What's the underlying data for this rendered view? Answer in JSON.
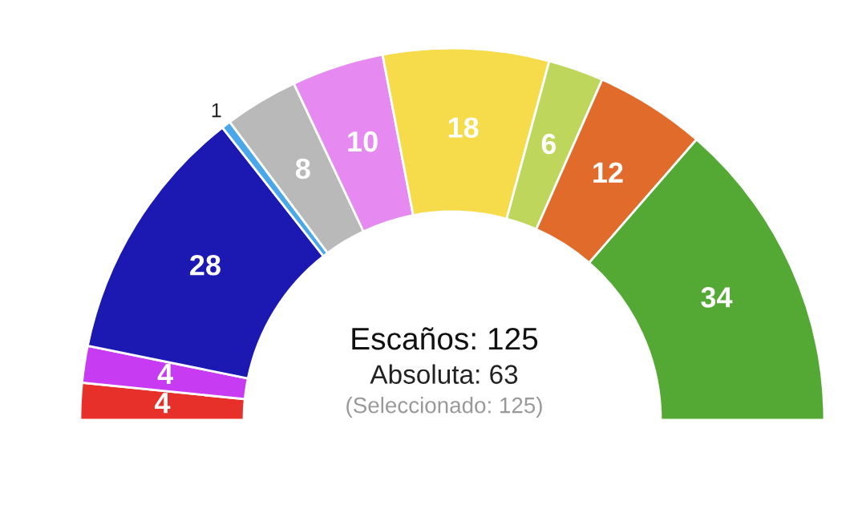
{
  "chart_data": {
    "type": "donut",
    "categories": [
      null,
      null,
      null,
      null,
      null,
      null,
      null,
      null,
      null,
      null
    ],
    "values": [
      4,
      4,
      28,
      1,
      8,
      10,
      18,
      6,
      12,
      34
    ],
    "colors": [
      "#e8302a",
      "#c73cf2",
      "#1c19b3",
      "#4aa8ea",
      "#b9b9b9",
      "#e68af2",
      "#f6dc4b",
      "#bdd65b",
      "#e06b2b",
      "#53a933"
    ],
    "data_labels": true,
    "annotations": [
      "Escaños: 125",
      "Absoluta: 63",
      "(Seleccionado: 125)"
    ]
  }
}
